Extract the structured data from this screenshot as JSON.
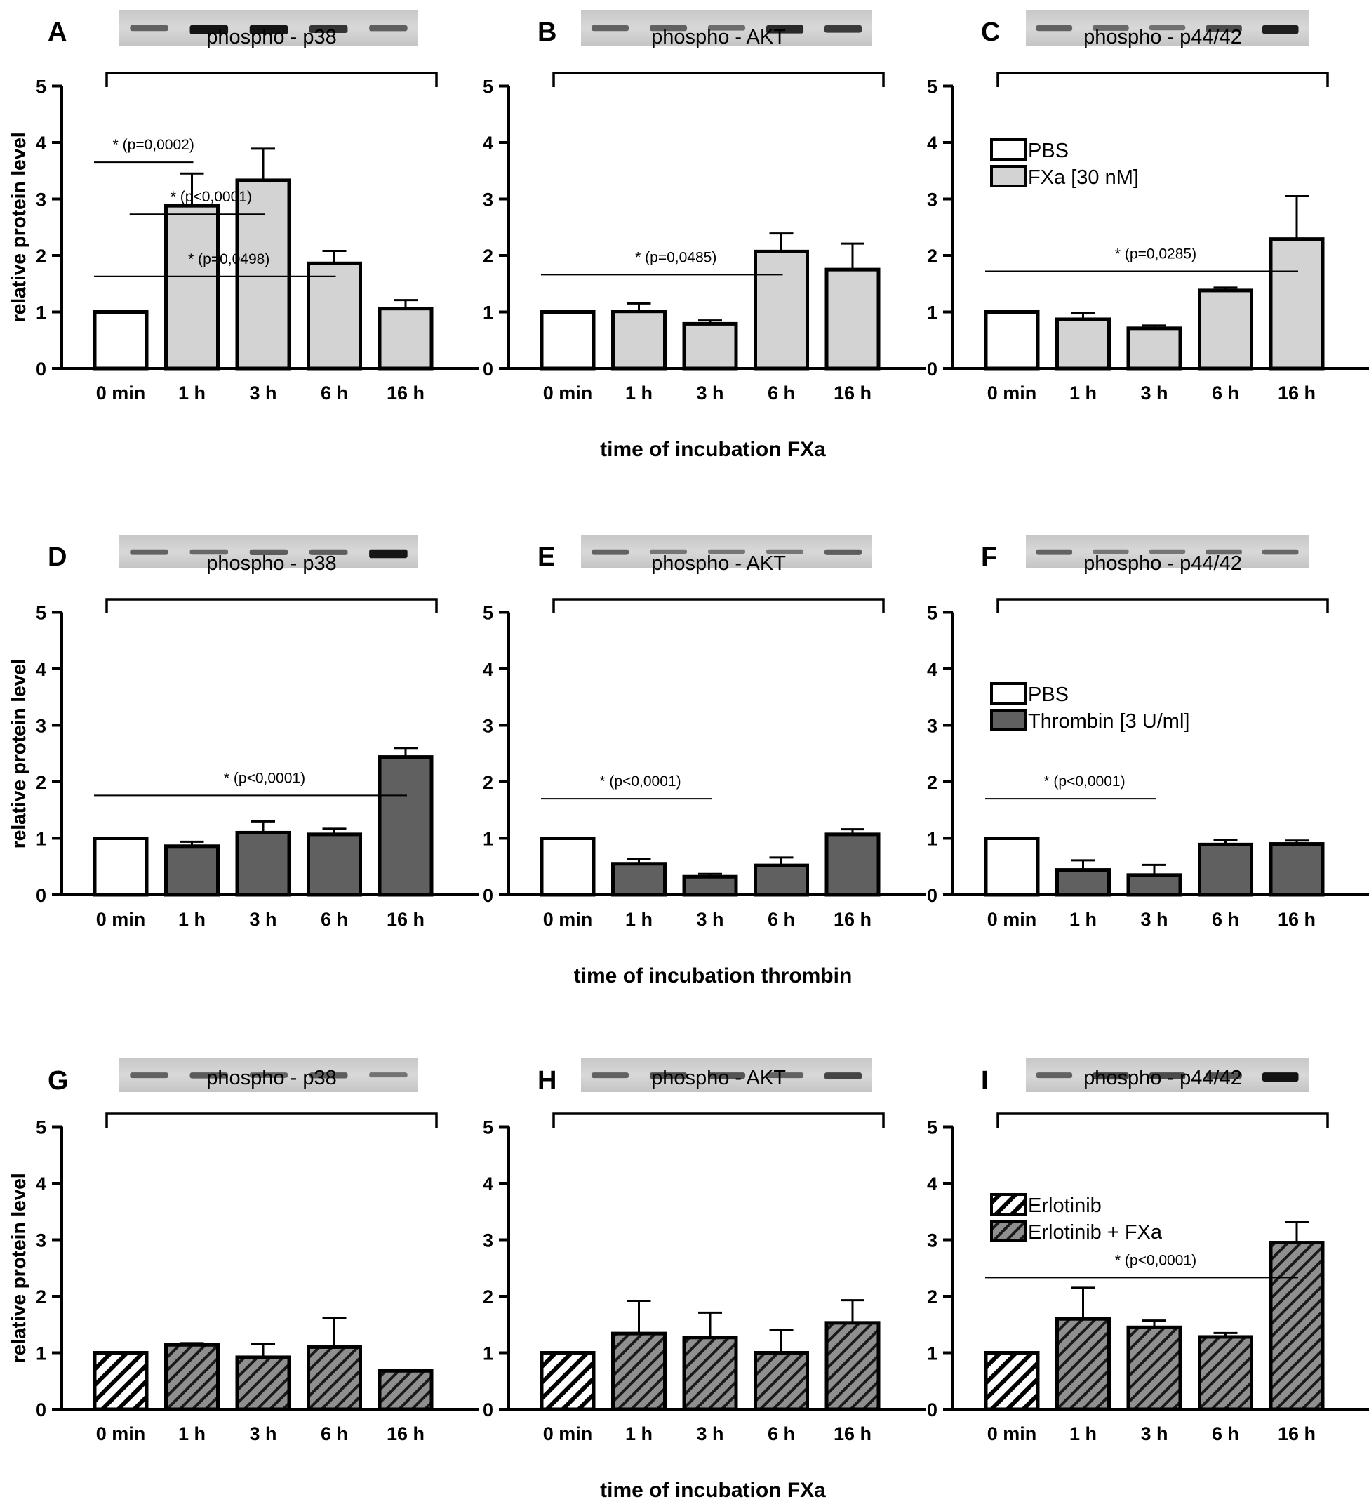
{
  "figure": {
    "ylabel": "relative protein level",
    "categories": [
      "0 min",
      "1 h",
      "3 h",
      "6 h",
      "16 h"
    ],
    "yticks": [
      "0",
      "1",
      "2",
      "3",
      "4",
      "5"
    ],
    "rows": [
      {
        "xlabel": "time of incubation FXa"
      },
      {
        "xlabel": "time of incubation thrombin"
      },
      {
        "xlabel": "time of incubation FXa"
      }
    ],
    "legends": [
      {
        "row": 0,
        "col": 2,
        "entries": [
          {
            "label": "PBS",
            "fill": "open"
          },
          {
            "label": "FXa [30 nM]",
            "fill": "light"
          }
        ]
      },
      {
        "row": 1,
        "col": 2,
        "entries": [
          {
            "label": "PBS",
            "fill": "open"
          },
          {
            "label": "Thrombin [3 U/ml]",
            "fill": "dark"
          }
        ]
      },
      {
        "row": 2,
        "col": 2,
        "entries": [
          {
            "label": "Erlotinib",
            "fill": "hatch-open"
          },
          {
            "label": "Erlotinib + FXa",
            "fill": "hatch-dark"
          }
        ]
      }
    ]
  },
  "colors": {
    "light": "#d3d3d3",
    "dark": "#606060",
    "hatch_bg": "#8f8f8f",
    "line": "#000000"
  },
  "chart_data": [
    {
      "panel": "A",
      "type": "bar",
      "title": "phospho - p38",
      "ylim": [
        0,
        5
      ],
      "treatment": "light",
      "categories": [
        "0 min",
        "1 h",
        "3 h",
        "6 h",
        "16 h"
      ],
      "values": [
        1.0,
        2.88,
        3.33,
        1.86,
        1.06
      ],
      "errors": [
        0,
        0.57,
        0.56,
        0.22,
        0.15
      ],
      "significance": [
        {
          "label": "* (p=0,0002)",
          "from": 0,
          "to": 1,
          "y": 3.65
        },
        {
          "label": "* (p<0,0001)",
          "from": 0.5,
          "to": 2,
          "y": 2.73
        },
        {
          "label": "* (p=0,0498)",
          "from": 0,
          "to": 3,
          "y": 1.63
        }
      ]
    },
    {
      "panel": "B",
      "type": "bar",
      "title": "phospho - AKT",
      "ylim": [
        0,
        5
      ],
      "treatment": "light",
      "categories": [
        "0 min",
        "1 h",
        "3 h",
        "6 h",
        "16 h"
      ],
      "values": [
        1.0,
        1.01,
        0.79,
        2.07,
        1.75
      ],
      "errors": [
        0,
        0.14,
        0.06,
        0.32,
        0.46
      ],
      "significance": [
        {
          "label": "* (p=0,0485)",
          "from": 0,
          "to": 3,
          "y": 1.66
        }
      ]
    },
    {
      "panel": "C",
      "type": "bar",
      "title": "phospho - p44/42",
      "ylim": [
        0,
        5
      ],
      "treatment": "light",
      "categories": [
        "0 min",
        "1 h",
        "3 h",
        "6 h",
        "16 h"
      ],
      "values": [
        1.0,
        0.87,
        0.71,
        1.38,
        2.29
      ],
      "errors": [
        0,
        0.11,
        0.05,
        0.05,
        0.76
      ],
      "significance": [
        {
          "label": "* (p=0,0285)",
          "from": 0,
          "to": 4,
          "y": 1.72
        }
      ]
    },
    {
      "panel": "D",
      "type": "bar",
      "title": "phospho - p38",
      "ylim": [
        0,
        5
      ],
      "treatment": "dark",
      "categories": [
        "0 min",
        "1 h",
        "3 h",
        "6 h",
        "16 h"
      ],
      "values": [
        1.0,
        0.86,
        1.1,
        1.07,
        2.44
      ],
      "errors": [
        0,
        0.08,
        0.2,
        0.1,
        0.16
      ],
      "significance": [
        {
          "label": "* (p<0,0001)",
          "from": 0,
          "to": 4,
          "y": 1.76
        }
      ]
    },
    {
      "panel": "E",
      "type": "bar",
      "title": "phospho - AKT",
      "ylim": [
        0,
        5
      ],
      "treatment": "dark",
      "categories": [
        "0 min",
        "1 h",
        "3 h",
        "6 h",
        "16 h"
      ],
      "values": [
        1.0,
        0.55,
        0.32,
        0.52,
        1.07
      ],
      "errors": [
        0,
        0.08,
        0.05,
        0.14,
        0.09
      ],
      "significance": [
        {
          "label": "* (p<0,0001)",
          "from": 0,
          "to": 2,
          "y": 1.7
        }
      ]
    },
    {
      "panel": "F",
      "type": "bar",
      "title": "phospho - p44/42",
      "ylim": [
        0,
        5
      ],
      "treatment": "dark",
      "categories": [
        "0 min",
        "1 h",
        "3 h",
        "6 h",
        "16 h"
      ],
      "values": [
        1.0,
        0.44,
        0.35,
        0.89,
        0.9
      ],
      "errors": [
        0,
        0.17,
        0.18,
        0.08,
        0.06
      ],
      "significance": [
        {
          "label": "* (p<0,0001)",
          "from": 0,
          "to": 2,
          "y": 1.7
        }
      ]
    },
    {
      "panel": "G",
      "type": "bar",
      "title": "phospho - p38",
      "ylim": [
        0,
        5
      ],
      "treatment": "hatch-dark",
      "categories": [
        "0 min",
        "1 h",
        "3 h",
        "6 h",
        "16 h"
      ],
      "values": [
        1.0,
        1.14,
        0.92,
        1.1,
        0.68
      ],
      "errors": [
        0,
        0.03,
        0.24,
        0.52,
        0
      ],
      "significance": []
    },
    {
      "panel": "H",
      "type": "bar",
      "title": "phospho - AKT",
      "ylim": [
        0,
        5
      ],
      "treatment": "hatch-dark",
      "categories": [
        "0 min",
        "1 h",
        "3 h",
        "6 h",
        "16 h"
      ],
      "values": [
        1.0,
        1.34,
        1.27,
        1.0,
        1.53
      ],
      "errors": [
        0,
        0.58,
        0.44,
        0.4,
        0.4
      ],
      "significance": []
    },
    {
      "panel": "I",
      "type": "bar",
      "title": "phospho - p44/42",
      "ylim": [
        0,
        5
      ],
      "treatment": "hatch-dark",
      "categories": [
        "0 min",
        "1 h",
        "3 h",
        "6 h",
        "16 h"
      ],
      "values": [
        1.0,
        1.6,
        1.45,
        1.28,
        2.95
      ],
      "errors": [
        0,
        0.55,
        0.12,
        0.07,
        0.36
      ],
      "significance": [
        {
          "label": "* (p<0,0001)",
          "from": 0,
          "to": 4,
          "y": 2.33
        }
      ]
    }
  ]
}
